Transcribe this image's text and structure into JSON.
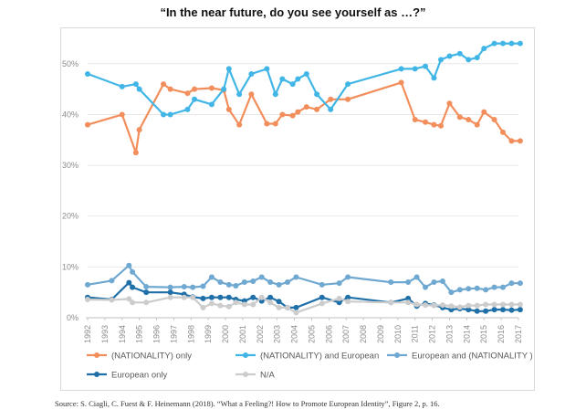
{
  "title": "“In the near future, do you see yourself as …?”",
  "source": "Source: S. Ciagli, C. Fuest & F. Heinemann (2018). “What a Feeling?! How to Promote European Identity”, Figure 2, p. 16.",
  "chart_data": {
    "type": "line",
    "title": "“In the near future, do you see yourself as …?”",
    "xlabel": "",
    "ylabel": "",
    "ylim": [
      0,
      55
    ],
    "xlim": [
      1992,
      2017
    ],
    "yticks": [
      0,
      10,
      20,
      30,
      40,
      50
    ],
    "ytick_labels": [
      "0%",
      "10%",
      "20%",
      "30%",
      "40%",
      "50%"
    ],
    "xticks": [
      1992,
      1993,
      1994,
      1995,
      1996,
      1997,
      1998,
      1999,
      2000,
      2001,
      2002,
      2003,
      2004,
      2005,
      2006,
      2007,
      2008,
      2009,
      2010,
      2011,
      2012,
      2013,
      2014,
      2015,
      2016,
      2017
    ],
    "grid": "horizontal",
    "legend_position": "bottom",
    "series": [
      {
        "name": "(NATIONALITY) only",
        "color": "#f28e5b",
        "x": [
          1992.0,
          1994.0,
          1994.8,
          1995.0,
          1996.4,
          1996.8,
          1997.8,
          1998.2,
          1999.2,
          1999.9,
          2000.2,
          2000.8,
          2001.5,
          2002.4,
          2002.9,
          2003.3,
          2003.9,
          2004.2,
          2004.7,
          2005.3,
          2006.1,
          2007.1,
          2010.2,
          2011.0,
          2011.6,
          2012.1,
          2012.5,
          2013.0,
          2013.6,
          2014.1,
          2014.6,
          2015.0,
          2015.6,
          2016.1,
          2016.6,
          2017.1
        ],
        "y": [
          38.0,
          40.0,
          32.5,
          37.0,
          46.0,
          45.0,
          44.2,
          45.0,
          45.2,
          44.8,
          41.0,
          38.0,
          44.0,
          38.2,
          38.2,
          40.0,
          39.8,
          40.5,
          41.5,
          41.0,
          43.0,
          43.0,
          46.3,
          39.0,
          38.5,
          38.0,
          37.8,
          42.2,
          39.5,
          39.0,
          38.0,
          40.5,
          39.0,
          36.5,
          34.8,
          34.8
        ]
      },
      {
        "name": "(NATIONALITY) and European",
        "color": "#41b6e6",
        "x": [
          1992.0,
          1994.0,
          1994.8,
          1995.0,
          1996.4,
          1996.8,
          1997.8,
          1998.2,
          1999.2,
          1999.9,
          2000.2,
          2000.8,
          2001.5,
          2002.4,
          2002.9,
          2003.3,
          2003.9,
          2004.2,
          2004.7,
          2005.3,
          2006.1,
          2007.1,
          2010.2,
          2011.0,
          2011.6,
          2012.1,
          2012.5,
          2013.0,
          2013.6,
          2014.1,
          2014.6,
          2015.0,
          2015.6,
          2016.1,
          2016.6,
          2017.1
        ],
        "y": [
          48.0,
          45.5,
          46.0,
          45.0,
          40.0,
          40.0,
          41.0,
          43.0,
          42.0,
          45.0,
          49.0,
          44.0,
          48.0,
          49.0,
          44.0,
          47.0,
          46.0,
          47.0,
          48.0,
          44.0,
          41.0,
          46.0,
          49.0,
          49.0,
          49.5,
          47.2,
          50.8,
          51.5,
          52.0,
          50.8,
          51.2,
          53.0,
          54.0,
          54.0,
          54.0,
          54.0
        ]
      },
      {
        "name": "European and (NATIONALITY )",
        "color": "#6fa8d0",
        "x": [
          1992.0,
          1993.4,
          1994.4,
          1994.6,
          1995.4,
          1996.8,
          1997.6,
          1998.1,
          1998.7,
          1999.2,
          1999.7,
          2000.2,
          2000.6,
          2001.1,
          2001.6,
          2002.1,
          2002.6,
          2003.1,
          2003.6,
          2004.1,
          2005.6,
          2006.6,
          2007.1,
          2009.6,
          2010.6,
          2011.1,
          2011.6,
          2012.1,
          2012.6,
          2013.1,
          2013.6,
          2014.1,
          2014.6,
          2015.1,
          2015.6,
          2016.1,
          2016.6,
          2017.1
        ],
        "y": [
          6.5,
          7.3,
          10.3,
          9.0,
          6.1,
          6.0,
          6.1,
          6.0,
          6.2,
          8.0,
          7.0,
          6.5,
          6.3,
          7.0,
          7.2,
          8.0,
          7.0,
          6.5,
          7.0,
          8.0,
          6.5,
          6.8,
          8.0,
          7.0,
          7.0,
          8.0,
          6.0,
          7.0,
          7.2,
          5.0,
          5.5,
          5.7,
          5.8,
          5.5,
          6.0,
          6.0,
          6.8,
          6.8
        ]
      },
      {
        "name": "European only",
        "color": "#1f6fa8",
        "x": [
          1992.0,
          1993.4,
          1994.4,
          1994.6,
          1995.4,
          1996.8,
          1997.6,
          1998.1,
          1998.7,
          1999.2,
          1999.7,
          2000.2,
          2000.6,
          2001.1,
          2001.6,
          2002.1,
          2002.6,
          2003.1,
          2003.6,
          2004.1,
          2005.6,
          2006.6,
          2007.1,
          2009.6,
          2010.6,
          2011.1,
          2011.6,
          2012.1,
          2012.6,
          2013.1,
          2013.6,
          2014.1,
          2014.6,
          2015.1,
          2015.6,
          2016.1,
          2016.6,
          2017.1
        ],
        "y": [
          4.0,
          3.6,
          6.9,
          6.0,
          5.0,
          5.0,
          4.6,
          4.1,
          3.8,
          4.0,
          4.0,
          4.0,
          3.6,
          3.3,
          4.0,
          3.3,
          4.0,
          3.2,
          2.0,
          2.0,
          4.0,
          3.0,
          4.0,
          3.0,
          3.8,
          2.3,
          2.8,
          2.5,
          2.0,
          1.6,
          1.8,
          1.6,
          1.3,
          1.3,
          1.6,
          1.6,
          1.5,
          1.6
        ]
      },
      {
        "name": "N/A",
        "color": "#cccccc",
        "x": [
          1992.0,
          1993.4,
          1994.4,
          1994.6,
          1995.4,
          1996.8,
          1997.6,
          1998.1,
          1998.7,
          1999.2,
          1999.7,
          2000.2,
          2000.6,
          2001.1,
          2001.6,
          2002.1,
          2002.6,
          2003.1,
          2003.6,
          2004.1,
          2005.6,
          2006.6,
          2007.1,
          2009.6,
          2010.6,
          2011.1,
          2011.6,
          2012.1,
          2012.6,
          2013.1,
          2013.6,
          2014.1,
          2014.6,
          2015.1,
          2015.6,
          2016.1,
          2016.6,
          2017.1
        ],
        "y": [
          3.6,
          3.5,
          3.7,
          3.0,
          3.0,
          4.0,
          4.0,
          4.0,
          2.0,
          2.8,
          2.4,
          2.2,
          3.0,
          2.6,
          2.6,
          4.0,
          3.0,
          2.0,
          2.0,
          1.0,
          2.8,
          3.8,
          3.2,
          3.0,
          3.0,
          2.6,
          2.5,
          2.4,
          2.5,
          2.3,
          2.1,
          2.4,
          2.4,
          2.6,
          2.6,
          2.6,
          2.6,
          2.6
        ]
      }
    ]
  }
}
